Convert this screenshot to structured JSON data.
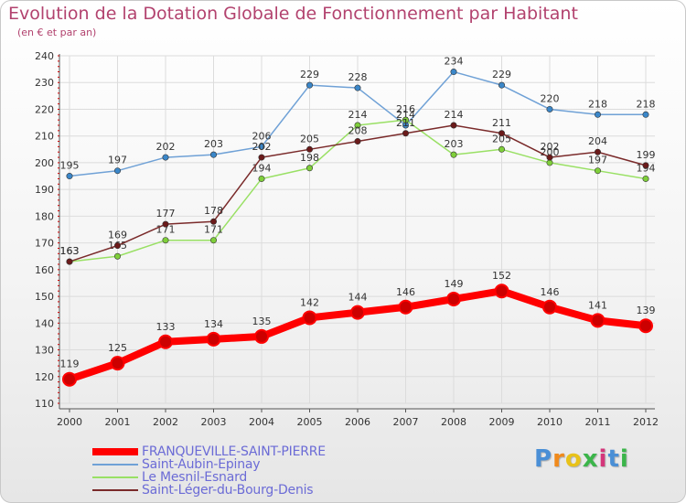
{
  "header": {
    "title": "Evolution de la Dotation Globale de Fonctionnement par Habitant",
    "subtitle": "(en € et par an)"
  },
  "brand": {
    "text": "Proxiti"
  },
  "chart_data": {
    "type": "line",
    "title": "Evolution de la Dotation Globale de Fonctionnement par Habitant",
    "subtitle": "(en € et par an)",
    "x": [
      "2000",
      "2001",
      "2002",
      "2003",
      "2004",
      "2005",
      "2006",
      "2007",
      "2008",
      "2009",
      "2010",
      "2011",
      "2012"
    ],
    "ylim": [
      110,
      240
    ],
    "yticks": [
      110,
      120,
      130,
      140,
      150,
      160,
      170,
      180,
      190,
      200,
      210,
      220,
      230,
      240
    ],
    "grid": true,
    "legend_position": "bottom-left",
    "series": [
      {
        "name": "FRANQUEVILLE-SAINT-PIERRE",
        "color": "#ff0000",
        "marker_color": "#cc0000",
        "emphasis": true,
        "values": [
          119,
          125,
          133,
          134,
          135,
          142,
          144,
          146,
          149,
          152,
          146,
          141,
          139
        ]
      },
      {
        "name": "Saint-Aubin-Epinay",
        "color": "#6fa1d6",
        "marker_color": "#3b87c9",
        "emphasis": false,
        "values": [
          195,
          197,
          202,
          203,
          206,
          229,
          228,
          214,
          234,
          229,
          220,
          218,
          218
        ]
      },
      {
        "name": "Le Mesnil-Esnard",
        "color": "#99e064",
        "marker_color": "#7fcf3a",
        "emphasis": false,
        "values": [
          163,
          165,
          171,
          171,
          194,
          198,
          214,
          216,
          203,
          205,
          200,
          197,
          194
        ]
      },
      {
        "name": "Saint-Léger-du-Bourg-Denis",
        "color": "#7a2a2a",
        "marker_color": "#6b1a1a",
        "emphasis": false,
        "values": [
          163,
          169,
          177,
          178,
          202,
          205,
          208,
          211,
          214,
          211,
          202,
          204,
          199
        ]
      }
    ]
  }
}
